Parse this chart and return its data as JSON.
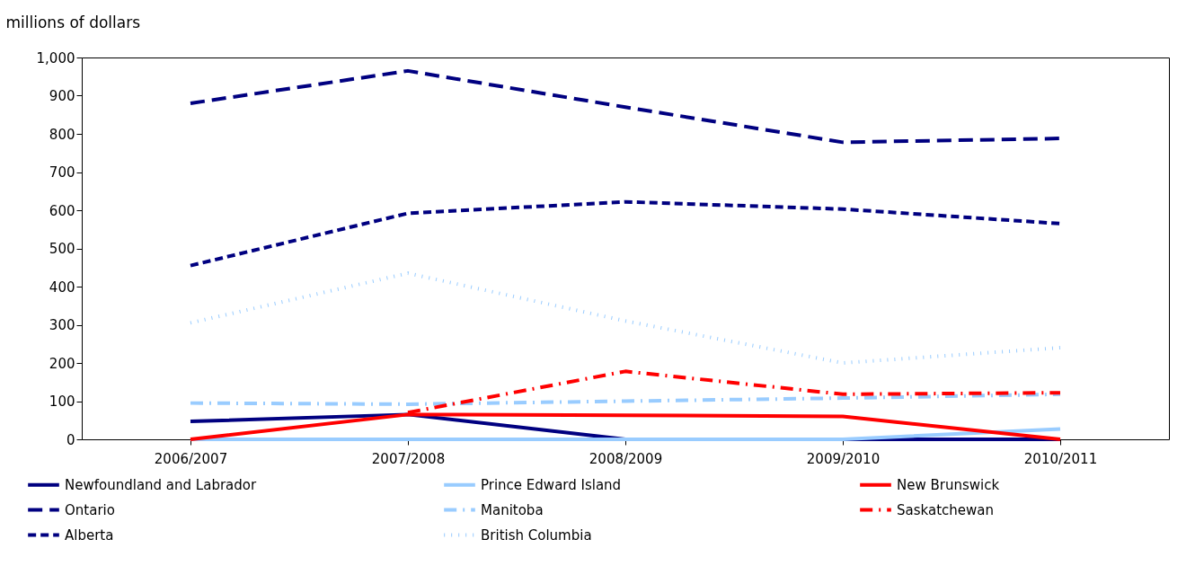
{
  "chart_data": {
    "type": "line",
    "ylabel": "millions of dollars",
    "categories": [
      "2006/2007",
      "2007/2008",
      "2008/2009",
      "2009/2010",
      "2010/2011"
    ],
    "ylim": [
      0,
      1000
    ],
    "yticks": [
      0,
      100,
      200,
      300,
      400,
      500,
      600,
      700,
      800,
      900,
      {
        "value": 1000,
        "label": "1,000"
      }
    ],
    "legend": "bottom",
    "grid": false,
    "series": [
      {
        "name": "Newfoundland and Labrador",
        "color": "#000080",
        "line_style": "solid",
        "values": [
          47,
          65,
          0,
          0,
          0
        ]
      },
      {
        "name": "Prince Edward Island",
        "color": "#99ccff",
        "line_style": "solid",
        "values": [
          0,
          0,
          0,
          0,
          27
        ]
      },
      {
        "name": "New Brunswick",
        "color": "#ff0000",
        "line_style": "solid",
        "values": [
          0,
          65,
          63,
          60,
          0
        ]
      },
      {
        "name": "Ontario",
        "color": "#000080",
        "line_style": "dashed",
        "values": [
          880,
          965,
          870,
          778,
          788
        ]
      },
      {
        "name": "Manitoba",
        "color": "#99ccff",
        "line_style": "dashdot",
        "values": [
          95,
          92,
          100,
          108,
          118
        ]
      },
      {
        "name": "Saskatchewan",
        "color": "#ff0000",
        "line_style": "dashdot",
        "values": [
          null,
          70,
          178,
          118,
          122
        ]
      },
      {
        "name": "Alberta",
        "color": "#000080",
        "line_style": "shortdash",
        "values": [
          455,
          592,
          622,
          603,
          565
        ]
      },
      {
        "name": "British Columbia",
        "color": "#99ccff",
        "line_style": "dotted",
        "values": [
          305,
          435,
          310,
          200,
          240
        ]
      }
    ]
  }
}
